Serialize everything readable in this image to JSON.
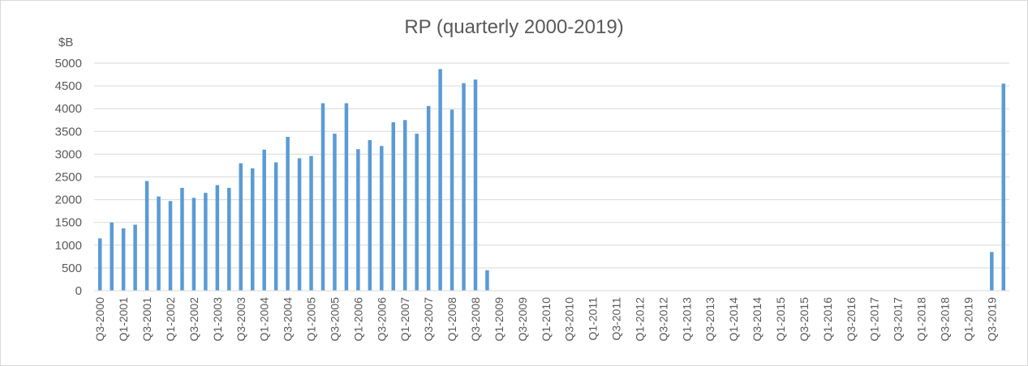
{
  "chart_data": {
    "type": "bar",
    "title": "RP (quarterly 2000-2019)",
    "ylabel": "$B",
    "xlabel": "",
    "ylim": [
      0,
      5000
    ],
    "yticks": [
      0,
      500,
      1000,
      1500,
      2000,
      2500,
      3000,
      3500,
      4000,
      4500,
      5000
    ],
    "grid": true,
    "legend": "none",
    "bar_color": "#5b9bd5",
    "categories": [
      "Q3-2000",
      "Q4-2000",
      "Q1-2001",
      "Q2-2001",
      "Q3-2001",
      "Q4-2001",
      "Q1-2002",
      "Q2-2002",
      "Q3-2002",
      "Q4-2002",
      "Q1-2003",
      "Q2-2003",
      "Q3-2003",
      "Q4-2003",
      "Q1-2004",
      "Q2-2004",
      "Q3-2004",
      "Q4-2004",
      "Q1-2005",
      "Q2-2005",
      "Q3-2005",
      "Q4-2005",
      "Q1-2006",
      "Q2-2006",
      "Q3-2006",
      "Q4-2006",
      "Q1-2007",
      "Q2-2007",
      "Q3-2007",
      "Q4-2007",
      "Q1-2008",
      "Q2-2008",
      "Q3-2008",
      "Q4-2008",
      "Q1-2009",
      "Q2-2009",
      "Q3-2009",
      "Q4-2009",
      "Q1-2010",
      "Q2-2010",
      "Q3-2010",
      "Q4-2010",
      "Q1-2011",
      "Q2-2011",
      "Q3-2011",
      "Q4-2011",
      "Q1-2012",
      "Q2-2012",
      "Q3-2012",
      "Q4-2012",
      "Q1-2013",
      "Q2-2013",
      "Q3-2013",
      "Q4-2013",
      "Q1-2014",
      "Q2-2014",
      "Q3-2014",
      "Q4-2014",
      "Q1-2015",
      "Q2-2015",
      "Q3-2015",
      "Q4-2015",
      "Q1-2016",
      "Q2-2016",
      "Q3-2016",
      "Q4-2016",
      "Q1-2017",
      "Q2-2017",
      "Q3-2017",
      "Q4-2017",
      "Q1-2018",
      "Q2-2018",
      "Q3-2018",
      "Q4-2018",
      "Q1-2019",
      "Q2-2019",
      "Q3-2019",
      "Q4-2019"
    ],
    "values": [
      1150,
      1500,
      1370,
      1450,
      2410,
      2070,
      1970,
      2260,
      2040,
      2150,
      2320,
      2260,
      2800,
      2690,
      3100,
      2820,
      3380,
      2910,
      2960,
      4120,
      3450,
      4120,
      3110,
      3310,
      3180,
      3700,
      3750,
      3450,
      4060,
      4870,
      3980,
      4560,
      4640,
      450,
      0,
      0,
      0,
      0,
      0,
      0,
      0,
      0,
      0,
      0,
      0,
      0,
      0,
      0,
      0,
      0,
      0,
      0,
      0,
      0,
      0,
      0,
      0,
      0,
      0,
      0,
      0,
      0,
      0,
      0,
      0,
      0,
      0,
      0,
      0,
      0,
      0,
      0,
      0,
      0,
      0,
      0,
      850,
      4550
    ]
  }
}
